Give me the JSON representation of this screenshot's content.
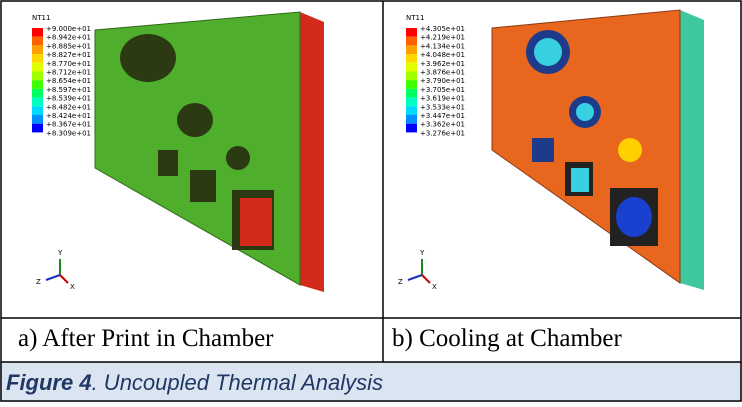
{
  "panels": [
    {
      "legend_title": "NT11",
      "legend_labels": [
        "+9.000e+01",
        "+8.942e+01",
        "+8.885e+01",
        "+8.827e+01",
        "+8.770e+01",
        "+8.712e+01",
        "+8.654e+01",
        "+8.597e+01",
        "+8.539e+01",
        "+8.482e+01",
        "+8.424e+01",
        "+8.367e+01",
        "+8.309e+01"
      ],
      "triad": {
        "x": "X",
        "y": "Y",
        "z": "Z"
      },
      "caption": "a)  After Print in Chamber"
    },
    {
      "legend_title": "NT11",
      "legend_labels": [
        "+4.305e+01",
        "+4.219e+01",
        "+4.134e+01",
        "+4.048e+01",
        "+3.962e+01",
        "+3.876e+01",
        "+3.790e+01",
        "+3.705e+01",
        "+3.619e+01",
        "+3.533e+01",
        "+3.447e+01",
        "+3.362e+01",
        "+3.276e+01"
      ],
      "triad": {
        "x": "X",
        "y": "Y",
        "z": "Z"
      },
      "caption": "b) Cooling at Chamber"
    }
  ],
  "figure": {
    "label": "Figure 4",
    "text": ". Uncoupled Thermal Analysis"
  }
}
